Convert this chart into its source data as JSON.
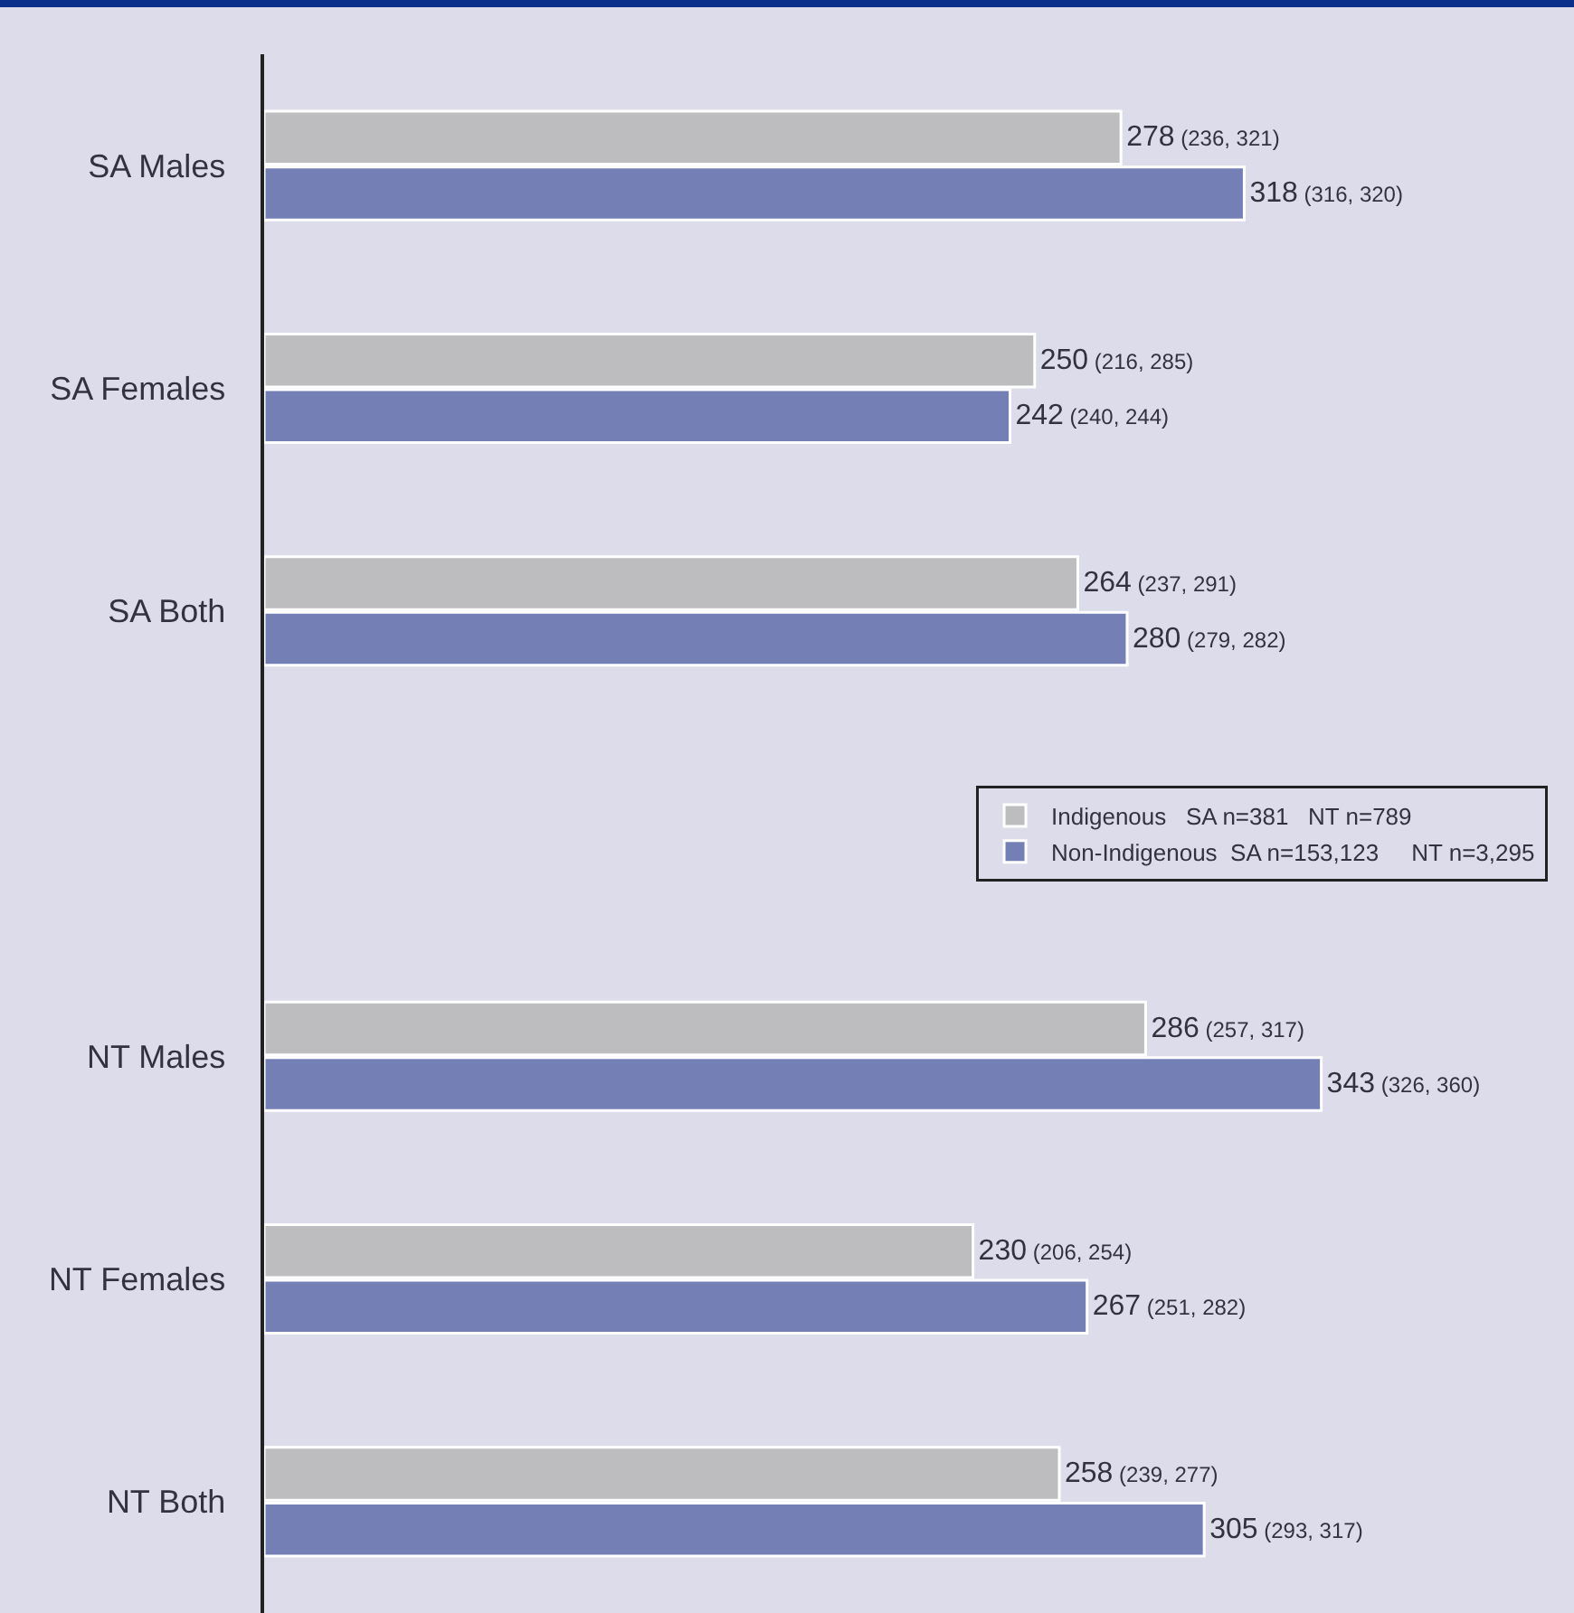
{
  "chart_data": {
    "type": "bar",
    "orientation": "horizontal",
    "categories": [
      "SA Males",
      "SA Females",
      "SA Both",
      null,
      "NT Males",
      "NT Females",
      "NT Both"
    ],
    "series": [
      {
        "name": "Indigenous   SA n=381   NT n=789",
        "color": "#bdbdc0",
        "values": [
          278,
          250,
          264,
          null,
          286,
          230,
          258
        ],
        "value_labels": [
          "278 (236, 321)",
          "250 (216, 285)",
          "264 (237, 291)",
          null,
          "286 (257, 317)",
          "230 (206, 254)",
          "258 (239, 277)"
        ]
      },
      {
        "name": "Non-Indigenous  SA n=153,123     NT n=3,295",
        "color": "#7480b5",
        "values": [
          318,
          242,
          280,
          null,
          343,
          267,
          305
        ],
        "value_labels": [
          "318 (316, 320)",
          "242 (240, 244)",
          "280 (279, 282)",
          null,
          "343 (326, 360)",
          "267 (251, 282)",
          "305 (293, 317)"
        ]
      }
    ],
    "xlim": [
      0,
      425
    ],
    "legend": "right",
    "grid": false,
    "tick_labels": "y"
  }
}
